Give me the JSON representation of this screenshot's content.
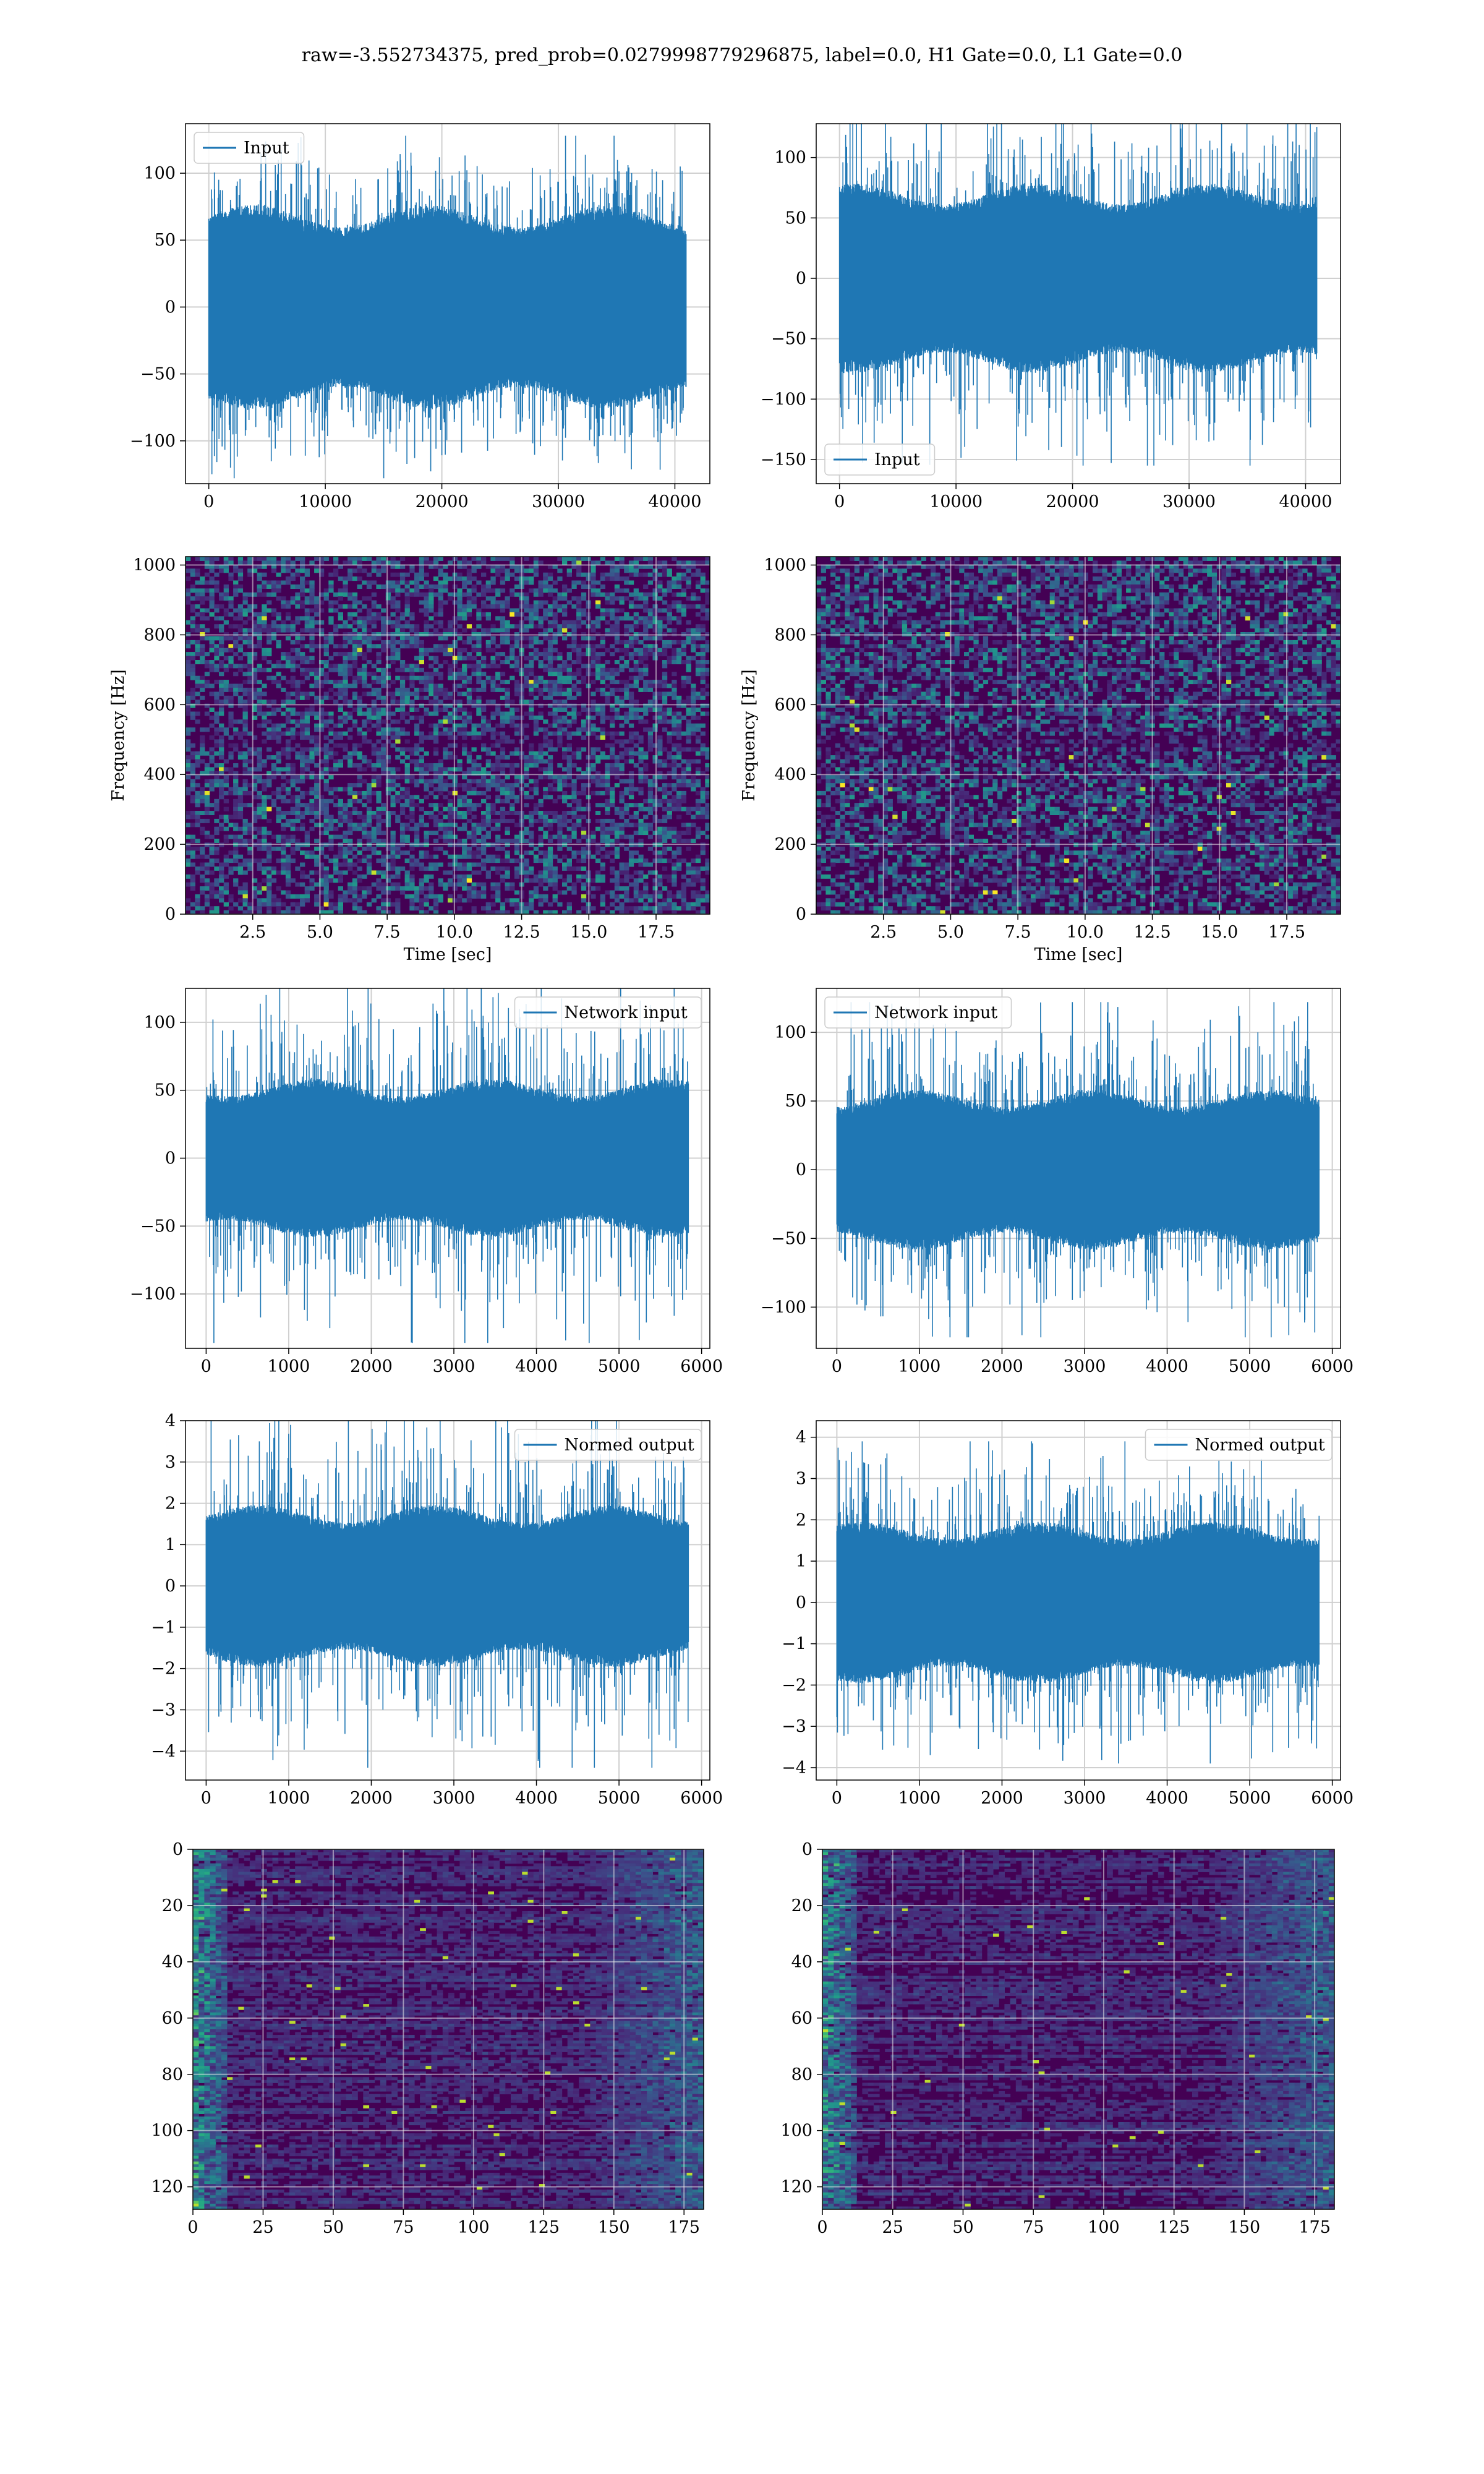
{
  "suptitle": "raw=-3.552734375, pred_prob=0.0279998779296875, label=0.0, H1 Gate=0.0, L1 Gate=0.0",
  "colors": {
    "series": "#1f77b4",
    "grid": "#d0d0d0",
    "axes": "#000000",
    "viridis_low": "#440154",
    "viridis_mid": "#21918c",
    "viridis_high": "#fde725"
  },
  "chart_data": [
    {
      "id": "r0c0",
      "type": "line",
      "title": "",
      "xlabel": "",
      "ylabel": "",
      "legend": "Input",
      "legend_loc": "upper-left",
      "xlim": [
        -2000,
        43000
      ],
      "ylim": [
        -132,
        137
      ],
      "xticks": [
        0,
        10000,
        20000,
        30000,
        40000
      ],
      "yticks": [
        -100,
        -50,
        0,
        50,
        100
      ],
      "signal": {
        "n_points": 40960,
        "x_range": [
          0,
          40960
        ],
        "band": 68,
        "max_abs": 128
      },
      "grid": true
    },
    {
      "id": "r0c1",
      "type": "line",
      "title": "",
      "xlabel": "",
      "ylabel": "",
      "legend": "Input",
      "legend_loc": "lower-left",
      "xlim": [
        -2000,
        43000
      ],
      "ylim": [
        -170,
        128
      ],
      "xticks": [
        0,
        10000,
        20000,
        30000,
        40000
      ],
      "yticks": [
        -150,
        -100,
        -50,
        0,
        50,
        100
      ],
      "signal": {
        "n_points": 40960,
        "x_range": [
          0,
          40960
        ],
        "band": 70,
        "max_abs": 155
      },
      "grid": true
    },
    {
      "id": "r1c0",
      "type": "heatmap",
      "title": "",
      "xlabel": "Time [sec]",
      "ylabel": "Frequency [Hz]",
      "xlim": [
        0,
        19.5
      ],
      "ylim": [
        0,
        1024
      ],
      "xticks": [
        2.5,
        5.0,
        7.5,
        10.0,
        12.5,
        15.0,
        17.5
      ],
      "yticks": [
        0,
        200,
        400,
        600,
        800,
        1000
      ],
      "xtick_labels": [
        "2.5",
        "5.0",
        "7.5",
        "10.0",
        "12.5",
        "15.0",
        "17.5"
      ],
      "colormap": "viridis",
      "grid": true
    },
    {
      "id": "r1c1",
      "type": "heatmap",
      "title": "",
      "xlabel": "Time [sec]",
      "ylabel": "Frequency [Hz]",
      "xlim": [
        0,
        19.5
      ],
      "ylim": [
        0,
        1024
      ],
      "xticks": [
        2.5,
        5.0,
        7.5,
        10.0,
        12.5,
        15.0,
        17.5
      ],
      "yticks": [
        0,
        200,
        400,
        600,
        800,
        1000
      ],
      "xtick_labels": [
        "2.5",
        "5.0",
        "7.5",
        "10.0",
        "12.5",
        "15.0",
        "17.5"
      ],
      "colormap": "viridis",
      "grid": true
    },
    {
      "id": "r2c0",
      "type": "line",
      "title": "",
      "xlabel": "",
      "ylabel": "",
      "legend": "Network input",
      "legend_loc": "upper-right",
      "xlim": [
        -250,
        6100
      ],
      "ylim": [
        -140,
        125
      ],
      "xticks": [
        0,
        1000,
        2000,
        3000,
        4000,
        5000,
        6000
      ],
      "yticks": [
        -100,
        -50,
        0,
        50,
        100
      ],
      "signal": {
        "n_points": 5840,
        "x_range": [
          0,
          5840
        ],
        "band": 52,
        "max_abs": 136
      },
      "grid": true
    },
    {
      "id": "r2c1",
      "type": "line",
      "title": "",
      "xlabel": "",
      "ylabel": "",
      "legend": "Network input",
      "legend_loc": "upper-left",
      "xlim": [
        -250,
        6100
      ],
      "ylim": [
        -130,
        132
      ],
      "xticks": [
        0,
        1000,
        2000,
        3000,
        4000,
        5000,
        6000
      ],
      "yticks": [
        -100,
        -50,
        0,
        50,
        100
      ],
      "signal": {
        "n_points": 5840,
        "x_range": [
          0,
          5840
        ],
        "band": 52,
        "max_abs": 122
      },
      "grid": true
    },
    {
      "id": "r3c0",
      "type": "line",
      "title": "",
      "xlabel": "",
      "ylabel": "",
      "legend": "Normed output",
      "legend_loc": "upper-right",
      "xlim": [
        -250,
        6100
      ],
      "ylim": [
        -4.7,
        4.0
      ],
      "xticks": [
        0,
        1000,
        2000,
        3000,
        4000,
        5000,
        6000
      ],
      "yticks": [
        -4,
        -3,
        -2,
        -1,
        0,
        1,
        2,
        3,
        4
      ],
      "signal": {
        "n_points": 5840,
        "x_range": [
          0,
          5840
        ],
        "band": 1.75,
        "max_abs": 4.4
      },
      "grid": true
    },
    {
      "id": "r3c1",
      "type": "line",
      "title": "",
      "xlabel": "",
      "ylabel": "",
      "legend": "Normed output",
      "legend_loc": "upper-right",
      "xlim": [
        -250,
        6100
      ],
      "ylim": [
        -4.3,
        4.4
      ],
      "xticks": [
        0,
        1000,
        2000,
        3000,
        4000,
        5000,
        6000
      ],
      "yticks": [
        -4,
        -3,
        -2,
        -1,
        0,
        1,
        2,
        3,
        4
      ],
      "signal": {
        "n_points": 5840,
        "x_range": [
          0,
          5840
        ],
        "band": 1.75,
        "max_abs": 3.9
      },
      "grid": true
    },
    {
      "id": "r4c0",
      "type": "heatmap",
      "title": "",
      "xlabel": "",
      "ylabel": "",
      "xlim": [
        0,
        182
      ],
      "ylim": [
        128,
        0
      ],
      "xticks": [
        0,
        25,
        50,
        75,
        100,
        125,
        150,
        175
      ],
      "yticks": [
        0,
        20,
        40,
        60,
        80,
        100,
        120
      ],
      "colormap": "viridis",
      "grid": true
    },
    {
      "id": "r4c1",
      "type": "heatmap",
      "title": "",
      "xlabel": "",
      "ylabel": "",
      "xlim": [
        0,
        182
      ],
      "ylim": [
        128,
        0
      ],
      "xticks": [
        0,
        25,
        50,
        75,
        100,
        125,
        150,
        175
      ],
      "yticks": [
        0,
        20,
        40,
        60,
        80,
        100,
        120
      ],
      "colormap": "viridis",
      "grid": true
    }
  ]
}
